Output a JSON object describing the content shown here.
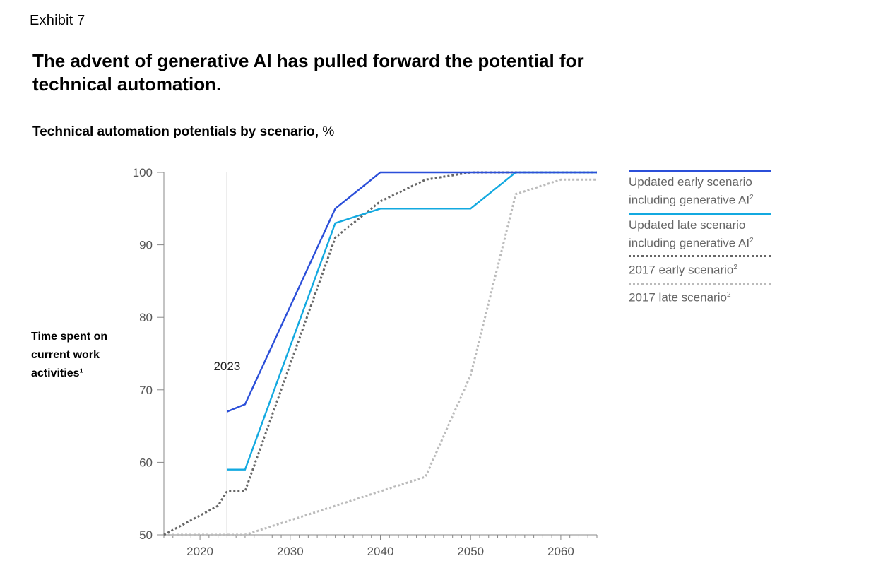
{
  "exhibit": "Exhibit 7",
  "title": "The advent of generative AI has pulled forward the potential for technical automation.",
  "subtitle_bold": "Technical automation potentials by scenario,",
  "subtitle_unit": " %",
  "ylabel_lines": [
    "Time spent on",
    "current work",
    "activities¹"
  ],
  "colors": {
    "updated_early": "#2b4fd9",
    "updated_late": "#13a9e0",
    "early_2017": "#666666",
    "late_2017": "#bbbbbb",
    "axis": "#888888"
  },
  "chart_data": {
    "type": "line",
    "title": "Technical automation potentials by scenario, %",
    "ylabel": "Time spent on current work activities¹",
    "xlabel": "",
    "xlim": [
      2016,
      2064
    ],
    "ylim": [
      50,
      100
    ],
    "x_ticks": [
      2020,
      2030,
      2040,
      2050,
      2060
    ],
    "y_ticks": [
      50,
      60,
      70,
      80,
      90,
      100
    ],
    "annotation": {
      "x": 2023,
      "label": "2023"
    },
    "series": [
      {
        "name": "Updated early scenario including generative AI²",
        "style": "solid",
        "color": "#2b4fd9",
        "points": [
          [
            2023,
            67
          ],
          [
            2025,
            68
          ],
          [
            2035,
            95
          ],
          [
            2040,
            100
          ],
          [
            2064,
            100
          ]
        ]
      },
      {
        "name": "Updated late scenario including generative AI²",
        "style": "solid",
        "color": "#13a9e0",
        "points": [
          [
            2023,
            59
          ],
          [
            2025,
            59
          ],
          [
            2035,
            93
          ],
          [
            2040,
            95
          ],
          [
            2050,
            95
          ],
          [
            2055,
            100
          ],
          [
            2064,
            100
          ]
        ]
      },
      {
        "name": "2017 early scenario²",
        "style": "dotted",
        "color": "#666666",
        "points": [
          [
            2016,
            50
          ],
          [
            2022,
            54
          ],
          [
            2023,
            56
          ],
          [
            2025,
            56
          ],
          [
            2035,
            91
          ],
          [
            2040,
            96
          ],
          [
            2045,
            99
          ],
          [
            2050,
            100
          ],
          [
            2064,
            100
          ]
        ]
      },
      {
        "name": "2017 late scenario²",
        "style": "dotted",
        "color": "#bbbbbb",
        "points": [
          [
            2016,
            50
          ],
          [
            2025,
            50
          ],
          [
            2035,
            54
          ],
          [
            2040,
            56
          ],
          [
            2045,
            58
          ],
          [
            2050,
            72
          ],
          [
            2055,
            97
          ],
          [
            2060,
            99
          ],
          [
            2064,
            99
          ]
        ]
      }
    ]
  },
  "legend": [
    {
      "line1": "Updated early scenario",
      "line2": "including generative AI",
      "sup": "2",
      "color": "#2b4fd9",
      "style": "solid"
    },
    {
      "line1": "Updated late scenario",
      "line2": "including generative AI",
      "sup": "2",
      "color": "#13a9e0",
      "style": "solid"
    },
    {
      "line1": "2017 early scenario",
      "line2": "",
      "sup": "2",
      "color": "#666666",
      "style": "dotted"
    },
    {
      "line1": "2017 late scenario",
      "line2": "",
      "sup": "2",
      "color": "#bbbbbb",
      "style": "dotted"
    }
  ]
}
